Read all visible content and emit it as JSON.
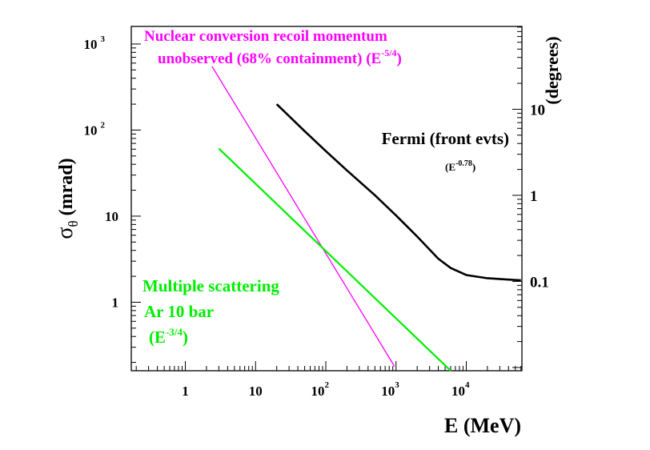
{
  "chart_data": {
    "type": "line",
    "xlabel": "E (MeV)",
    "ylabel_symbol": "σ",
    "ylabel_subscript": "θ",
    "ylabel_unit": "(mrad)",
    "y2label": "(degrees)",
    "xscale": "log",
    "yscale": "log",
    "xlim": [
      0.17,
      62000
    ],
    "ylim": [
      0.16,
      1600
    ],
    "x_ticks": [
      {
        "value": 1,
        "base": "1",
        "exp": ""
      },
      {
        "value": 10,
        "base": "10",
        "exp": ""
      },
      {
        "value": 100,
        "base": "10",
        "exp": "2"
      },
      {
        "value": 1000,
        "base": "10",
        "exp": "3"
      },
      {
        "value": 10000,
        "base": "10",
        "exp": "4"
      }
    ],
    "y_ticks": [
      {
        "value": 1,
        "base": "1",
        "exp": ""
      },
      {
        "value": 10,
        "base": "10",
        "exp": ""
      },
      {
        "value": 100,
        "base": "10",
        "exp": "2"
      },
      {
        "value": 1000,
        "base": "10",
        "exp": "3"
      }
    ],
    "y2_ticks": [
      {
        "value_deg": 0.1,
        "label": "0.1"
      },
      {
        "value_deg": 1,
        "label": "1"
      },
      {
        "value_deg": 10,
        "label": "10"
      }
    ],
    "series": [
      {
        "name": "Nuclear conversion recoil momentum unobserved (68% containment)",
        "color": "#ff00ff",
        "x": [
          2.4,
          950
        ],
        "y": [
          550,
          0.18
        ]
      },
      {
        "name": "Multiple scattering Ar 10 bar",
        "color": "#00ee00",
        "x": [
          3,
          6000
        ],
        "y": [
          61,
          0.16
        ]
      },
      {
        "name": "Fermi (front evts)",
        "color": "#000000",
        "x": [
          20,
          50,
          100,
          200,
          500,
          1000,
          2000,
          4000,
          6000,
          10000,
          20000,
          40000,
          60000
        ],
        "y": [
          200,
          97,
          57,
          34,
          17.5,
          10.2,
          5.8,
          3.2,
          2.5,
          2.07,
          1.9,
          1.83,
          1.8
        ]
      }
    ],
    "annotations": {
      "nuclear_line1": "Nuclear conversion recoil momentum",
      "nuclear_line2": "unobserved  (68% containment)  (E",
      "nuclear_exp": "-5/4",
      "nuclear_close": ")",
      "fermi_label": "Fermi (front evts)",
      "fermi_exp_open": "(E",
      "fermi_exp": "-0.78",
      "fermi_exp_close": ")",
      "ms_line1": "Multiple scattering",
      "ms_line2": "Ar 10 bar",
      "ms_exp_open": "(E",
      "ms_exp": "-3/4",
      "ms_exp_close": ")"
    }
  }
}
